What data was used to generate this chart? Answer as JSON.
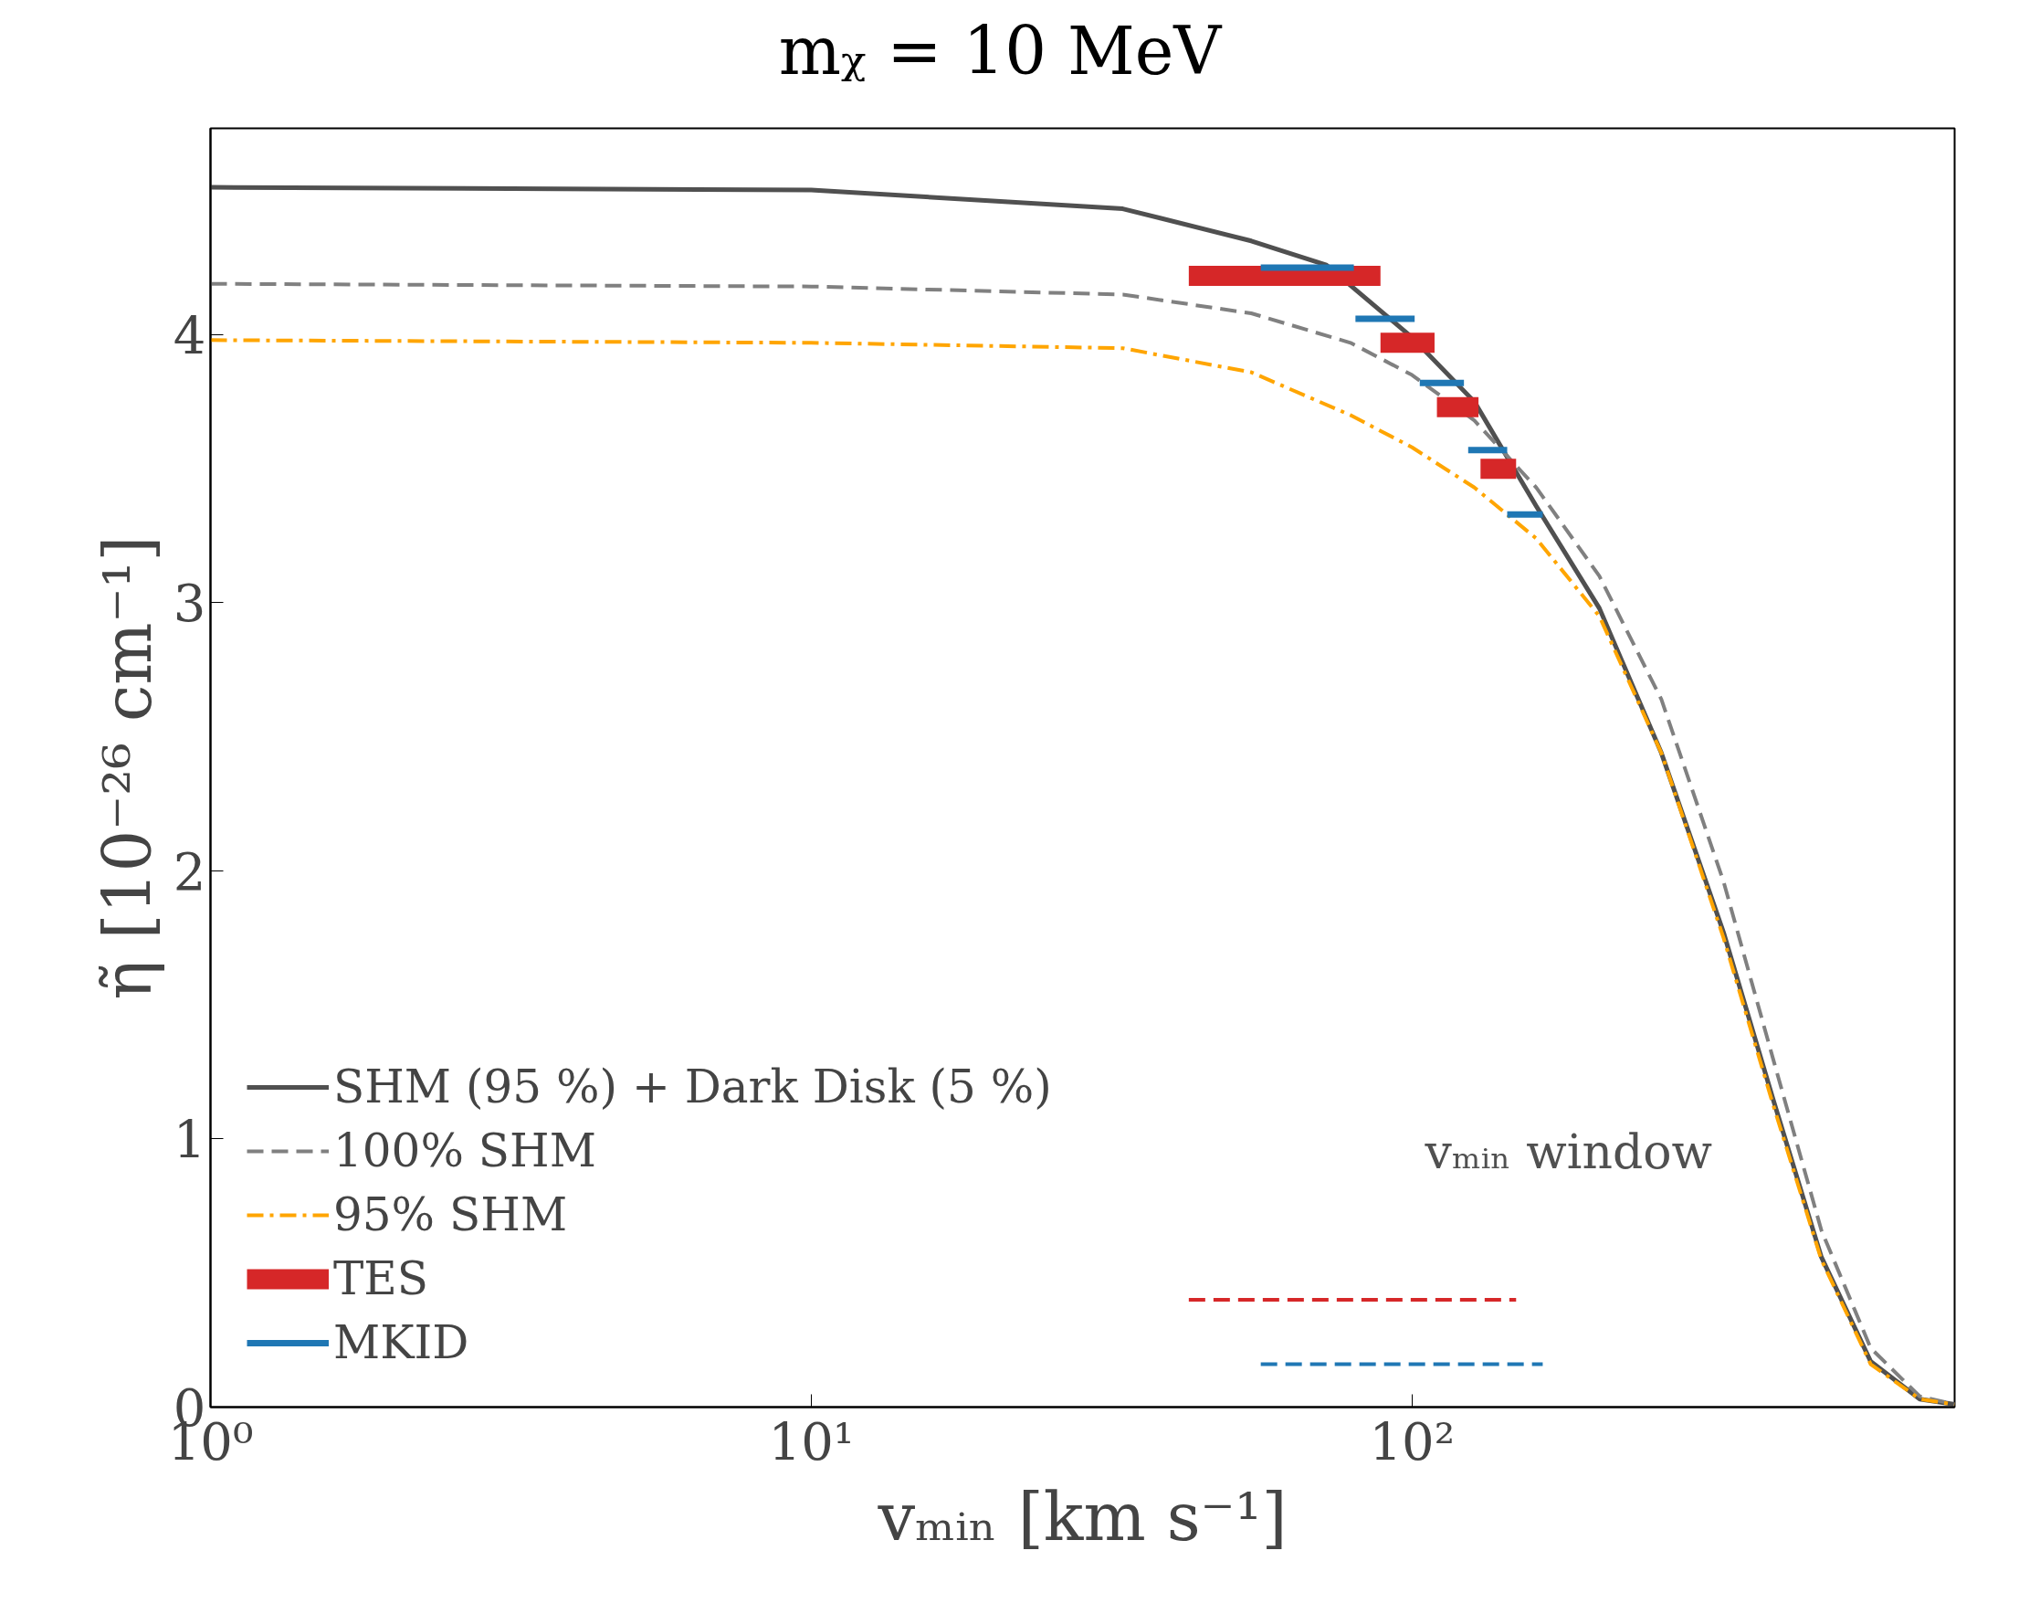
{
  "chart_data": {
    "type": "line",
    "title": "mᵪ = 10 MeV",
    "xlabel": "vₘᵢₙ [km s⁻¹]",
    "ylabel": "η̃ [10⁻²⁶ cm⁻¹]",
    "log": "x",
    "xlim": [
      1,
      800
    ],
    "ylim": [
      0,
      4.77
    ],
    "xticks": [
      {
        "value": 1,
        "label": "10⁰"
      },
      {
        "value": 10,
        "label": "10¹"
      },
      {
        "value": 100,
        "label": "10²"
      }
    ],
    "yticks": [
      0,
      1,
      2,
      3,
      4
    ],
    "grid": false,
    "legend": "bottom left",
    "annotations": [
      "vₘᵢₙ window"
    ],
    "series": [
      {
        "name": "SHM (95 %) + Dark Disk (5 %)",
        "color": "#505050",
        "line_style": "solid",
        "x": [
          1,
          10,
          33,
          54,
          72,
          100,
          127,
          161,
          205,
          260,
          330,
          400,
          480,
          580,
          700,
          800
        ],
        "values": [
          4.55,
          4.54,
          4.47,
          4.35,
          4.26,
          3.99,
          3.75,
          3.36,
          2.98,
          2.44,
          1.77,
          1.14,
          0.56,
          0.17,
          0.03,
          0.01
        ]
      },
      {
        "name": "100% SHM",
        "color": "#808080",
        "line_style": "dashed",
        "x": [
          1,
          10,
          33,
          54,
          79,
          100,
          127,
          161,
          205,
          260,
          330,
          400,
          480,
          580,
          700,
          800
        ],
        "values": [
          4.19,
          4.18,
          4.15,
          4.08,
          3.97,
          3.85,
          3.68,
          3.43,
          3.1,
          2.64,
          1.96,
          1.29,
          0.66,
          0.22,
          0.04,
          0.01
        ]
      },
      {
        "name": "95% SHM",
        "color": "#ffa500",
        "line_style": "dashdot",
        "x": [
          1,
          10,
          33,
          54,
          79,
          100,
          127,
          161,
          205,
          260,
          330,
          400,
          480,
          580,
          700,
          800
        ],
        "values": [
          3.98,
          3.97,
          3.95,
          3.86,
          3.7,
          3.58,
          3.43,
          3.24,
          2.95,
          2.44,
          1.75,
          1.12,
          0.55,
          0.16,
          0.03,
          0.01
        ]
      },
      {
        "name": "TES",
        "color": "#d62728",
        "line_style": "solid",
        "x": [
          42.5,
          88.6,
          null,
          88.6,
          109,
          null,
          110,
          129,
          null,
          130,
          149
        ],
        "values": [
          4.22,
          4.22,
          null,
          3.97,
          3.97,
          null,
          3.73,
          3.73,
          null,
          3.5,
          3.5
        ]
      },
      {
        "name": "MKID",
        "color": "#1f77b4",
        "line_style": "solid",
        "x": [
          56,
          80,
          null,
          80.5,
          101,
          null,
          103,
          122,
          null,
          124,
          144,
          null,
          144,
          165
        ],
        "values": [
          4.25,
          4.25,
          null,
          4.06,
          4.06,
          null,
          3.82,
          3.82,
          null,
          3.57,
          3.57,
          null,
          3.33,
          3.33
        ]
      },
      {
        "color": "#d62728",
        "line_style": "dashed",
        "x": [
          42.5,
          149
        ],
        "values": [
          0.4,
          0.4
        ]
      },
      {
        "color": "#1f77b4",
        "line_style": "dashed",
        "x": [
          56,
          165
        ],
        "values": [
          0.16,
          0.16
        ]
      }
    ]
  }
}
